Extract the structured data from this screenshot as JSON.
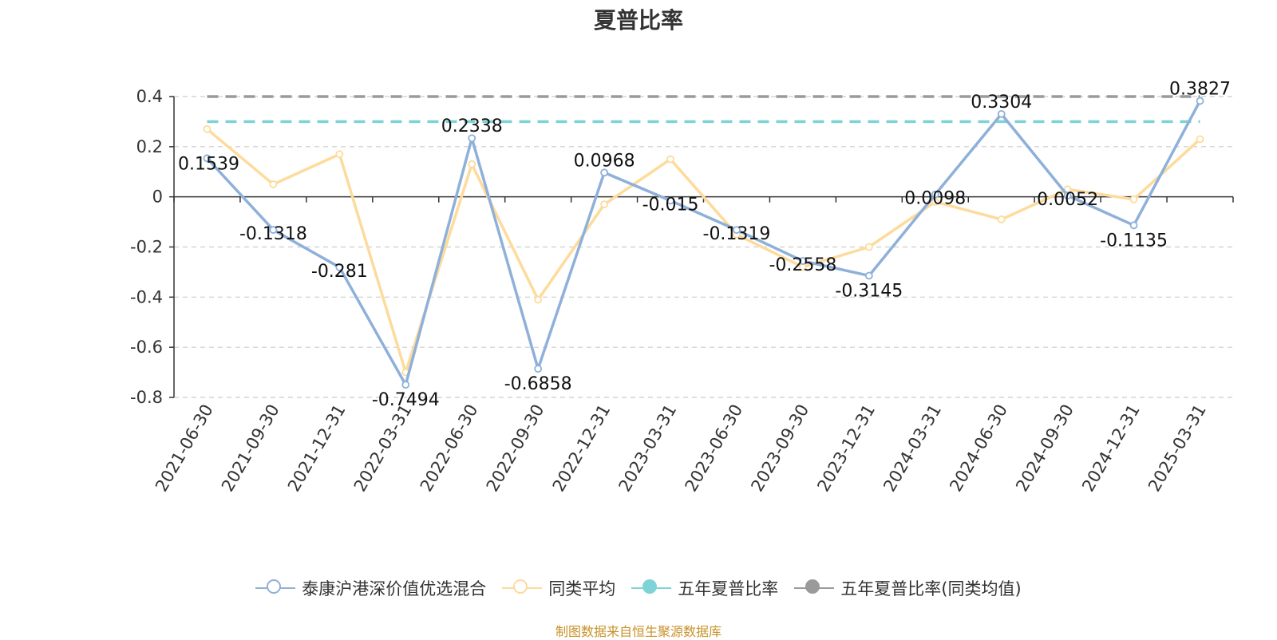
{
  "chart_data": {
    "type": "line",
    "title": "夏普比率",
    "categories": [
      "2021-06-30",
      "2021-09-30",
      "2021-12-31",
      "2022-03-31",
      "2022-06-30",
      "2022-09-30",
      "2022-12-31",
      "2023-03-31",
      "2023-06-30",
      "2023-09-30",
      "2023-12-31",
      "2024-03-31",
      "2024-06-30",
      "2024-09-30",
      "2024-12-31",
      "2025-03-31"
    ],
    "ylim": [
      -0.8,
      0.4
    ],
    "yticks": [
      0.4,
      0.2,
      0,
      -0.2,
      -0.4,
      -0.6,
      -0.8
    ],
    "ytick_labels": [
      "0.4",
      "0.2",
      "0",
      "-0.2",
      "-0.4",
      "-0.6",
      "-0.8"
    ],
    "grid": true,
    "legend_position": "bottom",
    "series": [
      {
        "name": "泰康沪港深价值优选混合",
        "color": "#8eb0d9",
        "values": [
          0.1539,
          -0.1318,
          -0.281,
          -0.7494,
          0.2338,
          -0.6858,
          0.0968,
          -0.015,
          -0.1319,
          -0.2558,
          -0.3145,
          0.0098,
          0.3304,
          0.0052,
          -0.1135,
          0.3827
        ],
        "labels": [
          "0.1539",
          "-0.1318",
          "-0.281",
          "-0.7494",
          "0.2338",
          "-0.6858",
          "0.0968",
          "-0.015",
          "-0.1319",
          "-0.2558",
          "-0.3145",
          "0.0098",
          "0.3304",
          "0.0052",
          "-0.1135",
          "0.3827"
        ]
      },
      {
        "name": "同类平均",
        "color": "#fddb9c",
        "values": [
          0.27,
          0.05,
          0.17,
          -0.7,
          0.13,
          -0.41,
          -0.03,
          0.15,
          -0.15,
          -0.28,
          -0.2,
          -0.02,
          -0.09,
          0.03,
          -0.01,
          0.23
        ]
      },
      {
        "name": "五年夏普比率",
        "color": "#7ed3d6",
        "dashed": true,
        "value": 0.3
      },
      {
        "name": "五年夏普比率(同类均值)",
        "color": "#9a9a9a",
        "dashed": true,
        "value": 0.4
      }
    ]
  },
  "source_text": "制图数据来自恒生聚源数据库",
  "colors": {
    "axis": "#333333",
    "grid": "#cccccc",
    "source": "#c8922a"
  }
}
